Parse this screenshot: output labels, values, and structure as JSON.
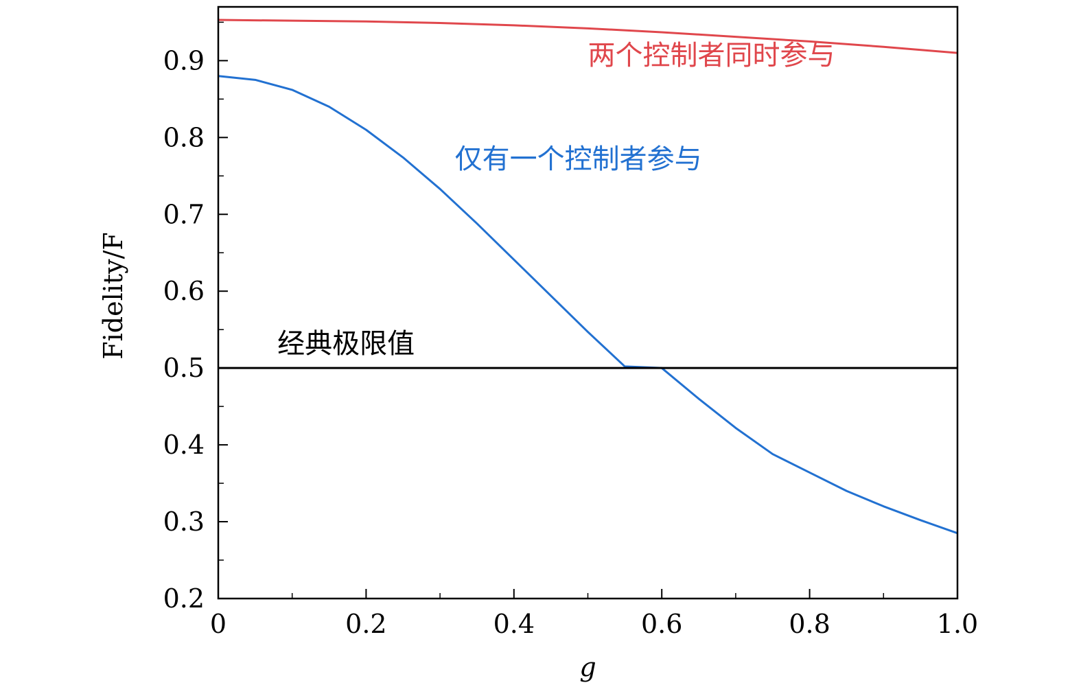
{
  "chart_data": {
    "type": "line",
    "xlabel": "g",
    "ylabel": "Fidelity/F",
    "xlim": [
      0,
      1.0
    ],
    "ylim": [
      0.2,
      0.97
    ],
    "xticks": [
      {
        "value": 0,
        "label": "0"
      },
      {
        "value": 0.2,
        "label": "0.2"
      },
      {
        "value": 0.4,
        "label": "0.4"
      },
      {
        "value": 0.6,
        "label": "0.6"
      },
      {
        "value": 0.8,
        "label": "0.8"
      },
      {
        "value": 1.0,
        "label": "1.0"
      }
    ],
    "yticks": [
      {
        "value": 0.2,
        "label": "0.2"
      },
      {
        "value": 0.3,
        "label": "0.3"
      },
      {
        "value": 0.4,
        "label": "0.4"
      },
      {
        "value": 0.5,
        "label": "0.5"
      },
      {
        "value": 0.6,
        "label": "0.6"
      },
      {
        "value": 0.7,
        "label": "0.7"
      },
      {
        "value": 0.8,
        "label": "0.8"
      },
      {
        "value": 0.9,
        "label": "0.9"
      }
    ],
    "x_minor_step": 0.1,
    "y_minor_step": 0.05,
    "grid": false,
    "legend": "none",
    "series": [
      {
        "color": "#e0474c",
        "x": [
          0,
          0.1,
          0.2,
          0.3,
          0.4,
          0.5,
          0.6,
          0.7,
          0.8,
          0.9,
          1.0
        ],
        "y": [
          0.953,
          0.952,
          0.951,
          0.949,
          0.946,
          0.942,
          0.937,
          0.931,
          0.925,
          0.918,
          0.91
        ]
      },
      {
        "color": "#2271d1",
        "x": [
          0,
          0.05,
          0.1,
          0.15,
          0.2,
          0.25,
          0.3,
          0.35,
          0.4,
          0.45,
          0.5,
          0.55,
          0.6,
          0.65,
          0.7,
          0.75,
          0.8,
          0.85,
          0.9,
          0.95,
          1.0
        ],
        "y": [
          0.88,
          0.875,
          0.862,
          0.84,
          0.81,
          0.774,
          0.733,
          0.688,
          0.641,
          0.594,
          0.547,
          0.502,
          0.5,
          0.46,
          0.422,
          0.388,
          0.364,
          0.34,
          0.32,
          0.302,
          0.285
        ]
      },
      {
        "color": "#000000",
        "x": [
          0,
          1.0
        ],
        "y": [
          0.5,
          0.5
        ]
      }
    ],
    "annotations": [
      {
        "text": "两个控制者同时参与",
        "x": 0.5,
        "y": 0.895,
        "color": "#e0474c"
      },
      {
        "text": "仅有一个控制者参与",
        "x": 0.32,
        "y": 0.76,
        "color": "#2271d1"
      },
      {
        "text": "经典极限值",
        "x": 0.08,
        "y": 0.52,
        "color": "#000000"
      }
    ]
  }
}
